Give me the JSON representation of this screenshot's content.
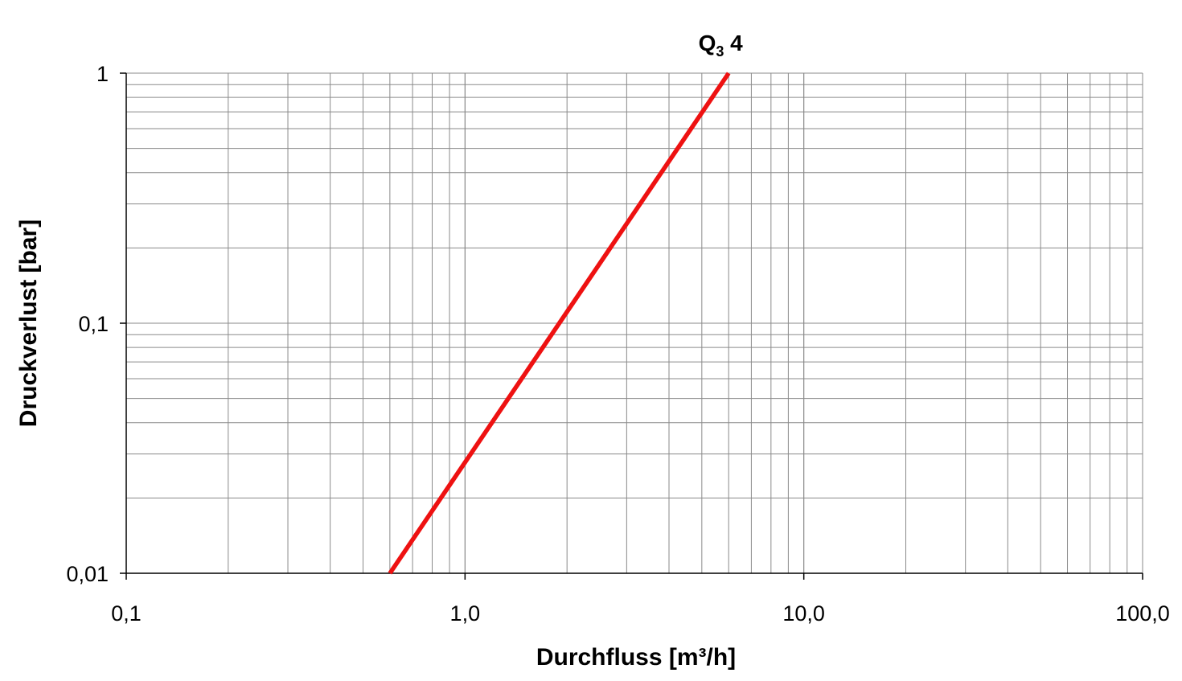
{
  "chart_data": {
    "type": "line",
    "xlabel": "Durchfluss [m³/h]",
    "ylabel": "Druckverlust [bar]",
    "x_scale": "log",
    "y_scale": "log",
    "xlim": [
      0.1,
      100
    ],
    "ylim": [
      0.01,
      1
    ],
    "x_ticks": [
      {
        "value": 0.1,
        "label": "0,1"
      },
      {
        "value": 1,
        "label": "1,0"
      },
      {
        "value": 10,
        "label": "10,0"
      },
      {
        "value": 100,
        "label": "100,0"
      }
    ],
    "y_ticks": [
      {
        "value": 1,
        "label": "1"
      },
      {
        "value": 0.1,
        "label": "0,1"
      },
      {
        "value": 0.01,
        "label": "0,01"
      }
    ],
    "grid": true,
    "series": [
      {
        "color": "#ee1111",
        "x": [
          0.6,
          6.0
        ],
        "y": [
          0.01,
          1.0
        ]
      }
    ],
    "annotations": [
      {
        "main": "Q",
        "sub": "3",
        "rest": " 4",
        "x": 6.0,
        "y": 1.0
      }
    ],
    "colors": {
      "grid": "#8a8a8a",
      "axis": "#000000",
      "series": "#ee1111"
    }
  }
}
